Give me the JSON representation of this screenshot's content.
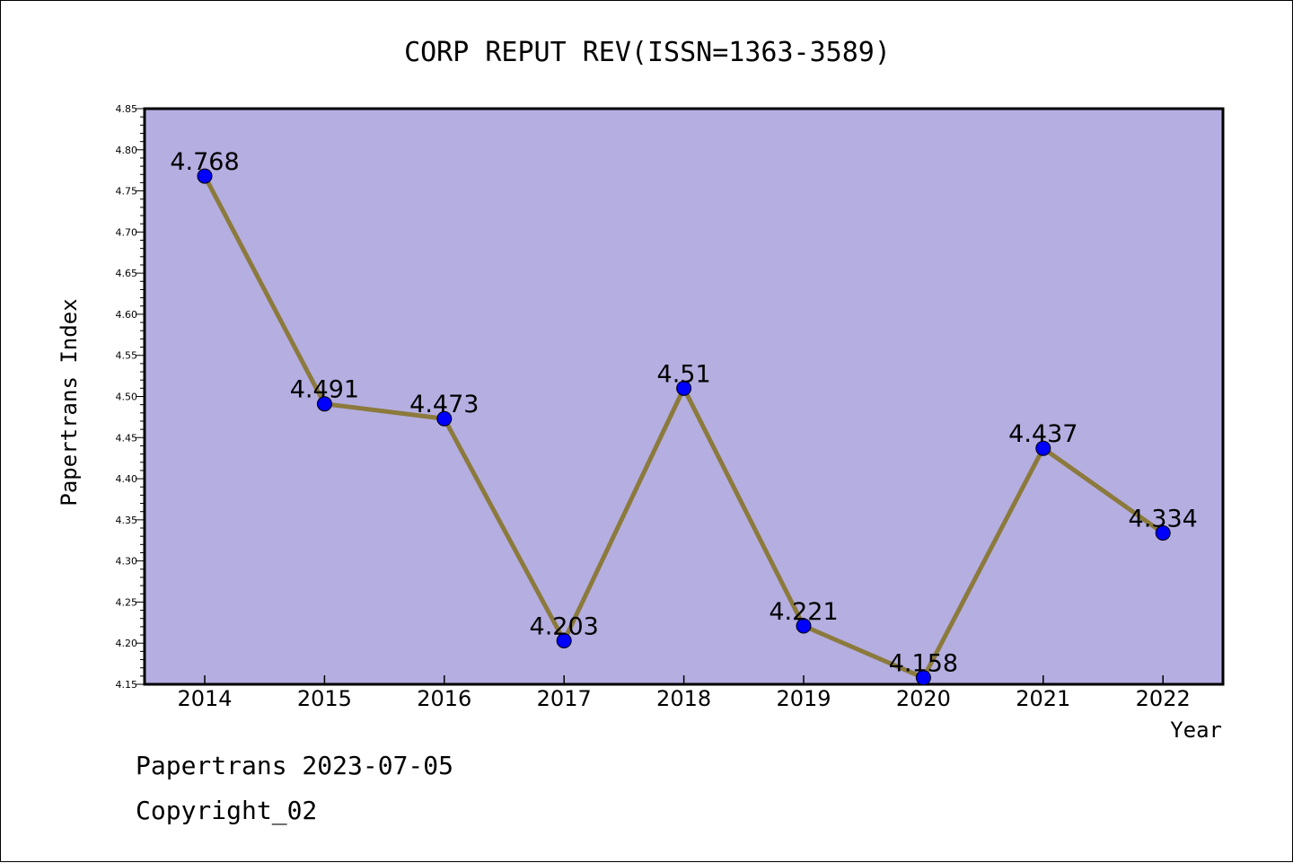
{
  "chart_data": {
    "type": "line",
    "title": "CORP REPUT REV(ISSN=1363-3589)",
    "xlabel": "Year",
    "ylabel": "Papertrans Index",
    "categories": [
      "2014",
      "2015",
      "2016",
      "2017",
      "2018",
      "2019",
      "2020",
      "2021",
      "2022"
    ],
    "values": [
      4.768,
      4.491,
      4.473,
      4.203,
      4.51,
      4.221,
      4.158,
      4.437,
      4.334
    ],
    "data_labels": [
      "4.768",
      "4.491",
      "4.473",
      "4.203",
      "4.51",
      "4.221",
      "4.158",
      "4.437",
      "4.334"
    ],
    "ylim": [
      4.15,
      4.85
    ],
    "yticks": [
      "4.15",
      "4.20",
      "4.25",
      "4.30",
      "4.35",
      "4.40",
      "4.45",
      "4.50",
      "4.55",
      "4.60",
      "4.65",
      "4.70",
      "4.75",
      "4.80",
      "4.85"
    ],
    "grid": false,
    "legend": "none",
    "colors": {
      "plot_background": "#b5aee1",
      "line": "#8b7a3c",
      "marker": "#0000ff"
    }
  },
  "footer": {
    "date_line": "Papertrans 2023-07-05",
    "copyright": "Copyright_02"
  }
}
